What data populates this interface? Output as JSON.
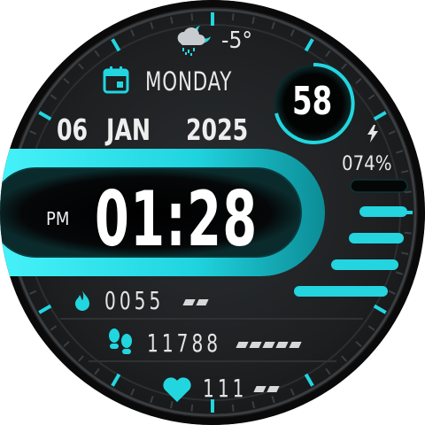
{
  "weather": {
    "icon": "cloud-moon-rain-icon",
    "temperature": "-5°"
  },
  "day": {
    "icon": "calendar-icon",
    "label": "MONDAY"
  },
  "date": {
    "day": "06",
    "month": "JAN",
    "year": "2025"
  },
  "time": {
    "ampm": "PM",
    "value": "01:28"
  },
  "seconds_dial": {
    "value": "58"
  },
  "battery": {
    "icon": "lightning-bolt-icon",
    "percent_label": "074%",
    "level": 0.74
  },
  "calories": {
    "icon": "flame-icon",
    "value": "0055",
    "dash_count": 2
  },
  "steps": {
    "icon": "footprints-icon",
    "value": "11788",
    "dash_count": 5
  },
  "heart_rate": {
    "icon": "heart-icon",
    "value": "111",
    "dash_count": 2
  },
  "colors": {
    "accent": "#1fd3de",
    "accent_dark": "#0e8f99",
    "background": "#1d1f21",
    "text": "#f2f2f2"
  }
}
